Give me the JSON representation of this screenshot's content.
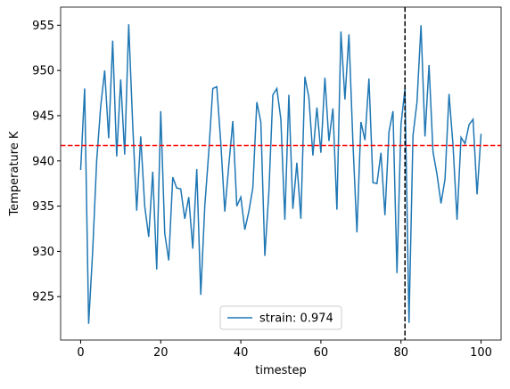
{
  "chart_data": {
    "type": "line",
    "xlabel": "timestep",
    "ylabel": "Temperature K",
    "x": [
      0,
      1,
      2,
      3,
      4,
      5,
      6,
      7,
      8,
      9,
      10,
      11,
      12,
      13,
      14,
      15,
      16,
      17,
      18,
      19,
      20,
      21,
      22,
      23,
      24,
      25,
      26,
      27,
      28,
      29,
      30,
      31,
      32,
      33,
      34,
      35,
      36,
      37,
      38,
      39,
      40,
      41,
      42,
      43,
      44,
      45,
      46,
      47,
      48,
      49,
      50,
      51,
      52,
      53,
      54,
      55,
      56,
      57,
      58,
      59,
      60,
      61,
      62,
      63,
      64,
      65,
      66,
      67,
      68,
      69,
      70,
      71,
      72,
      73,
      74,
      75,
      76,
      77,
      78,
      79,
      80,
      81,
      82,
      83,
      84,
      85,
      86,
      87,
      88,
      89,
      90,
      91,
      92,
      93,
      94,
      95,
      96,
      97,
      98,
      99,
      100
    ],
    "series": [
      {
        "name": "strain: 0.974",
        "color": "#1f77b4",
        "values": [
          939,
          948,
          922,
          930,
          940,
          946,
          950,
          942.5,
          953.3,
          940.5,
          949,
          940.7,
          955.1,
          944,
          934.5,
          942.7,
          935,
          931.6,
          938.8,
          928,
          945.5,
          932,
          929,
          938.2,
          937,
          936.9,
          933.6,
          936,
          930.3,
          939.1,
          925.2,
          935,
          941,
          948,
          948.2,
          942,
          934.4,
          939.5,
          944.4,
          935,
          936,
          932.4,
          934.4,
          937,
          946.5,
          944.3,
          929.5,
          936.5,
          947.3,
          948,
          944.6,
          933.5,
          947.3,
          934.7,
          939.8,
          933.6,
          949.3,
          947,
          940.6,
          945.9,
          940.9,
          949.2,
          942.2,
          945.8,
          934.6,
          954.3,
          946.8,
          954,
          942,
          932.1,
          944.3,
          942.3,
          949.1,
          937.6,
          937.5,
          940.9,
          934,
          943.2,
          945.5,
          927.6,
          944,
          948,
          922.1,
          942.8,
          946.5,
          955,
          942.7,
          950.6,
          941,
          938.5,
          935.3,
          938,
          947.4,
          941.7,
          933.5,
          942.6,
          941.9,
          944,
          944.6,
          936.3,
          943
        ]
      }
    ],
    "hline": {
      "value": 941.7,
      "color": "red"
    },
    "vline": {
      "value": 81,
      "color": "black"
    },
    "xlim": [
      -5,
      105
    ],
    "ylim": [
      920.2,
      957
    ],
    "xticks": [
      0,
      20,
      40,
      60,
      80,
      100
    ],
    "yticks": [
      925,
      930,
      935,
      940,
      945,
      950,
      955
    ],
    "legend": "lower center"
  }
}
